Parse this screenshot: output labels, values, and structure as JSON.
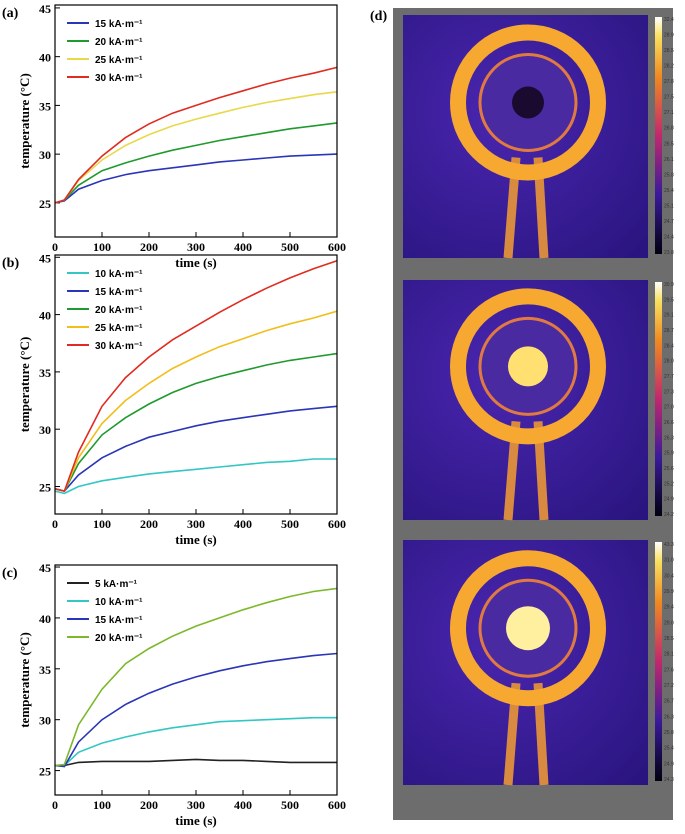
{
  "chart_data": [
    {
      "type": "line",
      "panel_label": "(a)",
      "xlabel": "time (s)",
      "ylabel": "temperature (°C)",
      "x": [
        0,
        20,
        50,
        100,
        150,
        200,
        250,
        300,
        350,
        400,
        450,
        500,
        550,
        600
      ],
      "series": [
        {
          "name": "15 kA·m⁻¹",
          "color": "#2a35b8",
          "values": [
            25,
            25.2,
            26.4,
            27.3,
            27.9,
            28.3,
            28.6,
            28.9,
            29.2,
            29.4,
            29.6,
            29.8,
            29.9,
            30.0
          ]
        },
        {
          "name": "20 kA·m⁻¹",
          "color": "#1f9a2e",
          "values": [
            25,
            25.3,
            26.8,
            28.3,
            29.1,
            29.8,
            30.4,
            30.9,
            31.4,
            31.8,
            32.2,
            32.6,
            32.9,
            33.2
          ]
        },
        {
          "name": "25 kA·m⁻¹",
          "color": "#e8d84a",
          "values": [
            25,
            25.3,
            27.3,
            29.4,
            30.9,
            32.0,
            32.9,
            33.6,
            34.2,
            34.8,
            35.3,
            35.7,
            36.1,
            36.4
          ]
        },
        {
          "name": "30 kA·m⁻¹",
          "color": "#e02b20",
          "values": [
            25,
            25.3,
            27.4,
            29.8,
            31.7,
            33.1,
            34.2,
            35.0,
            35.8,
            36.5,
            37.2,
            37.8,
            38.3,
            38.9
          ]
        }
      ],
      "xlim": [
        0,
        600
      ],
      "ylim": [
        21.5,
        45.3
      ],
      "xticks": [
        0,
        100,
        200,
        300,
        400,
        500,
        600
      ],
      "yticks": [
        25,
        30,
        35,
        40,
        45
      ]
    },
    {
      "type": "line",
      "panel_label": "(b)",
      "xlabel": "time (s)",
      "ylabel": "temperature (°C)",
      "x": [
        0,
        20,
        50,
        100,
        150,
        200,
        250,
        300,
        350,
        400,
        450,
        500,
        550,
        600
      ],
      "series": [
        {
          "name": "10 kA·m⁻¹",
          "color": "#33c7c4",
          "values": [
            24.6,
            24.4,
            25.0,
            25.5,
            25.8,
            26.1,
            26.3,
            26.5,
            26.7,
            26.9,
            27.1,
            27.2,
            27.4,
            27.4
          ]
        },
        {
          "name": "15 kA·m⁻¹",
          "color": "#2a35b8",
          "values": [
            24.8,
            24.6,
            26.0,
            27.5,
            28.5,
            29.3,
            29.8,
            30.3,
            30.7,
            31.0,
            31.3,
            31.6,
            31.8,
            32.0
          ]
        },
        {
          "name": "20 kA·m⁻¹",
          "color": "#1f9a2e",
          "values": [
            24.8,
            24.6,
            27.0,
            29.5,
            31.0,
            32.2,
            33.2,
            34.0,
            34.6,
            35.1,
            35.6,
            36.0,
            36.3,
            36.6
          ]
        },
        {
          "name": "25 kA·m⁻¹",
          "color": "#f2be1a",
          "values": [
            24.8,
            24.6,
            27.5,
            30.5,
            32.5,
            34.0,
            35.3,
            36.3,
            37.2,
            37.9,
            38.6,
            39.2,
            39.7,
            40.3
          ]
        },
        {
          "name": "30 kA·m⁻¹",
          "color": "#e02b20",
          "values": [
            24.8,
            24.6,
            28.0,
            32.0,
            34.5,
            36.3,
            37.8,
            39.0,
            40.2,
            41.3,
            42.3,
            43.2,
            44.0,
            44.7
          ]
        }
      ],
      "xlim": [
        0,
        600
      ],
      "ylim": [
        22.6,
        45.2
      ],
      "xticks": [
        0,
        100,
        200,
        300,
        400,
        500,
        600
      ],
      "yticks": [
        25,
        30,
        35,
        40,
        45
      ]
    },
    {
      "type": "line",
      "panel_label": "(c)",
      "xlabel": "time (s)",
      "ylabel": "temperature (°C)",
      "x": [
        0,
        20,
        50,
        100,
        150,
        200,
        250,
        300,
        350,
        400,
        450,
        500,
        550,
        600
      ],
      "series": [
        {
          "name": "5 kA·m⁻¹",
          "color": "#222222",
          "values": [
            25.5,
            25.5,
            25.8,
            25.9,
            25.9,
            25.9,
            26.0,
            26.1,
            26.0,
            26.0,
            25.9,
            25.8,
            25.8,
            25.8
          ]
        },
        {
          "name": "10 kA·m⁻¹",
          "color": "#33c7c4",
          "values": [
            25.5,
            25.5,
            26.8,
            27.7,
            28.3,
            28.8,
            29.2,
            29.5,
            29.8,
            29.9,
            30.0,
            30.1,
            30.2,
            30.2
          ]
        },
        {
          "name": "15 kA·m⁻¹",
          "color": "#2a35b8",
          "values": [
            25.5,
            25.4,
            27.8,
            30.0,
            31.5,
            32.6,
            33.5,
            34.2,
            34.8,
            35.3,
            35.7,
            36.0,
            36.3,
            36.5
          ]
        },
        {
          "name": "20 kA·m⁻¹",
          "color": "#7cb829",
          "values": [
            25.5,
            25.6,
            29.5,
            33.0,
            35.5,
            37.0,
            38.2,
            39.2,
            40.0,
            40.8,
            41.5,
            42.1,
            42.6,
            42.9
          ]
        }
      ],
      "xlim": [
        0,
        600
      ],
      "ylim": [
        22.6,
        45.2
      ],
      "xticks": [
        0,
        100,
        200,
        300,
        400,
        500,
        600
      ],
      "yticks": [
        25,
        30,
        35,
        40,
        45
      ]
    }
  ],
  "thermal_panel": {
    "panel_label": "(d)",
    "images": [
      {
        "colorbar_labels": [
          "32.4",
          "28.9",
          "28.5",
          "28.2",
          "27.8",
          "27.5",
          "27.1",
          "26.8",
          "26.5",
          "26.1",
          "25.8",
          "25.4",
          "25.1",
          "24.7",
          "24.4",
          "23.8"
        ]
      },
      {
        "colorbar_labels": [
          "30.9",
          "29.5",
          "29.1",
          "28.7",
          "28.4",
          "28.0",
          "27.7",
          "27.3",
          "27.0",
          "26.6",
          "26.3",
          "25.9",
          "25.6",
          "25.2",
          "24.9",
          "24.2"
        ]
      },
      {
        "colorbar_labels": [
          "43.3",
          "31.0",
          "30.4",
          "29.9",
          "29.4",
          "29.0",
          "28.5",
          "28.1",
          "27.6",
          "27.2",
          "26.7",
          "26.3",
          "25.8",
          "25.4",
          "24.9",
          "24.3"
        ]
      }
    ]
  }
}
